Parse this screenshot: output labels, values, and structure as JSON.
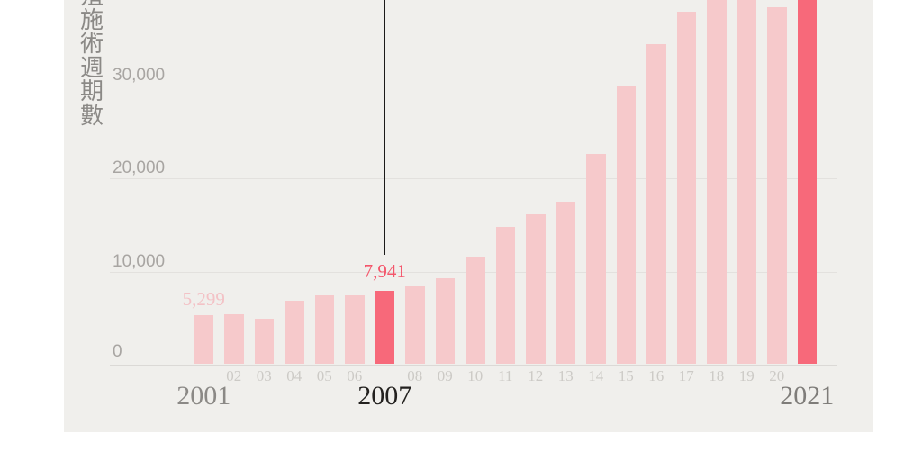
{
  "colors": {
    "panel_background": "#f0efec",
    "page_background": "#ffffff",
    "bar_pink": "#f6c9cb",
    "bar_red": "#f7697a",
    "gridline": "#e3e1de",
    "axis_line": "#dbd9d6",
    "ytick_text": "#a8a5a2",
    "xtick_small_text": "#cccac6",
    "year_2001_text": "#8b8986",
    "year_2007_text": "#23211f",
    "year_2021_text": "#7e7c79",
    "value_label_pink": "#f3c2c6",
    "value_label_red": "#f4566b",
    "y_axis_title_text": "#8b8986",
    "annotation_line": "#1b1a19"
  },
  "y_axis_title": {
    "chars": [
      "殖",
      "施",
      "術",
      "週",
      "期",
      "數"
    ],
    "note": "vertical label, first character clipped by top edge"
  },
  "chart_data": {
    "type": "bar",
    "title": "",
    "xlabel": "",
    "ylabel": "施術週期數",
    "categories": [
      "2001",
      "02",
      "03",
      "04",
      "05",
      "06",
      "2007",
      "08",
      "09",
      "10",
      "11",
      "12",
      "13",
      "14",
      "15",
      "16",
      "17",
      "18",
      "19",
      "20",
      "2021"
    ],
    "values": [
      5299,
      5450,
      4900,
      6900,
      7450,
      7450,
      7941,
      8450,
      9250,
      11600,
      14800,
      16150,
      17500,
      22600,
      29900,
      34400,
      37900,
      41400,
      41000,
      38400,
      42500
    ],
    "value_is_estimate": [
      false,
      true,
      true,
      true,
      true,
      true,
      false,
      true,
      true,
      true,
      true,
      true,
      true,
      true,
      true,
      true,
      true,
      true,
      true,
      true,
      true
    ],
    "highlighted_indices": [
      6,
      20
    ],
    "clipped_at_top_indices": [
      17,
      18,
      20
    ],
    "grid": true,
    "legend": "none",
    "yticks": [
      {
        "value": 0,
        "label": "0"
      },
      {
        "value": 10000,
        "label": "10,000"
      },
      {
        "value": 20000,
        "label": "20,000"
      },
      {
        "value": 30000,
        "label": "30,000"
      }
    ],
    "ylim_visible": [
      0,
      39200
    ],
    "big_year_labels": [
      {
        "index": 0,
        "label": "2001",
        "color_key": "year_2001_text"
      },
      {
        "index": 6,
        "label": "2007",
        "color_key": "year_2007_text"
      },
      {
        "index": 20,
        "label": "2021",
        "color_key": "year_2021_text"
      }
    ],
    "bar_value_labels": [
      {
        "index": 0,
        "label": "5,299",
        "color_key": "value_label_pink"
      },
      {
        "index": 6,
        "label": "7,941",
        "color_key": "value_label_red"
      }
    ],
    "annotation": {
      "target_index": 6,
      "style": "vertical line from above chart down to labeled bar"
    }
  }
}
